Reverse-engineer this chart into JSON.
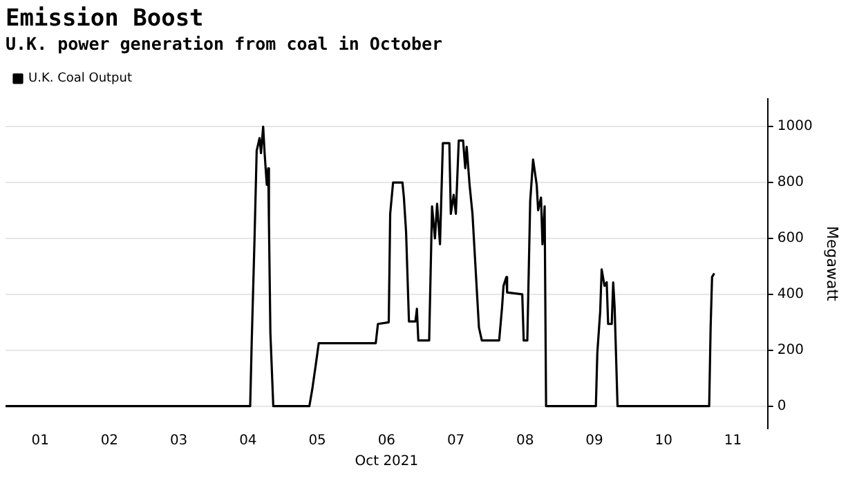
{
  "chart_data": {
    "type": "line",
    "title": "Emission Boost",
    "subtitle": "U.K. power generation from coal in October",
    "xlabel": "Oct 2021",
    "ylabel": "Megawatt",
    "series": [
      {
        "name": "U.K. Coal Output",
        "color": "#000000",
        "x": [
          "2021-10-01T00:00",
          "2021-10-04T12:45",
          "2021-10-04T13:15",
          "2021-10-04T14:15",
          "2021-10-04T15:00",
          "2021-10-04T16:00",
          "2021-10-04T16:30",
          "2021-10-04T17:15",
          "2021-10-04T17:45",
          "2021-10-04T18:30",
          "2021-10-04T19:00",
          "2021-10-04T19:15",
          "2021-10-04T19:45",
          "2021-10-04T20:45",
          "2021-10-05T09:15",
          "2021-10-05T10:15",
          "2021-10-05T11:30",
          "2021-10-05T12:30",
          "2021-10-06T08:15",
          "2021-10-06T09:00",
          "2021-10-06T12:45",
          "2021-10-06T13:15",
          "2021-10-06T14:15",
          "2021-10-06T17:30",
          "2021-10-06T18:00",
          "2021-10-06T18:45",
          "2021-10-06T19:45",
          "2021-10-06T22:00",
          "2021-10-06T22:30",
          "2021-10-06T23:00",
          "2021-10-07T02:45",
          "2021-10-07T03:45",
          "2021-10-07T04:45",
          "2021-10-07T05:30",
          "2021-10-07T06:30",
          "2021-10-07T07:30",
          "2021-10-07T09:45",
          "2021-10-07T10:15",
          "2021-10-07T11:15",
          "2021-10-07T12:00",
          "2021-10-07T13:00",
          "2021-10-07T14:30",
          "2021-10-07T15:15",
          "2021-10-07T15:45",
          "2021-10-07T16:45",
          "2021-10-07T17:45",
          "2021-10-07T20:00",
          "2021-10-07T21:00",
          "2021-10-08T03:00",
          "2021-10-08T04:00",
          "2021-10-08T04:30",
          "2021-10-08T05:30",
          "2021-10-08T05:45",
          "2021-10-08T11:00",
          "2021-10-08T11:30",
          "2021-10-08T12:45",
          "2021-10-08T13:45",
          "2021-10-08T14:45",
          "2021-10-08T16:00",
          "2021-10-08T16:30",
          "2021-10-08T17:30",
          "2021-10-08T18:00",
          "2021-10-08T18:45",
          "2021-10-08T19:15",
          "2021-10-09T12:30",
          "2021-10-09T13:00",
          "2021-10-09T14:00",
          "2021-10-09T14:30",
          "2021-10-09T15:30",
          "2021-10-09T16:15",
          "2021-10-09T16:45",
          "2021-10-09T18:00",
          "2021-10-09T18:30",
          "2021-10-09T19:00",
          "2021-10-09T20:00",
          "2021-10-11T03:45",
          "2021-10-11T04:15",
          "2021-10-11T04:45",
          "2021-10-11T05:30"
        ],
        "values": [
          0,
          0,
          217,
          597,
          914,
          959,
          905,
          1000,
          905,
          792,
          851,
          656,
          262,
          0,
          0,
          60,
          150,
          225,
          225,
          294,
          300,
          688,
          800,
          800,
          746,
          624,
          303,
          303,
          348,
          235,
          235,
          715,
          600,
          724,
          579,
          941,
          941,
          688,
          756,
          688,
          950,
          950,
          851,
          928,
          792,
          688,
          281,
          235,
          235,
          353,
          430,
          462,
          407,
          400,
          235,
          235,
          733,
          882,
          792,
          701,
          746,
          579,
          715,
          0,
          0,
          190,
          339,
          489,
          430,
          443,
          294,
          294,
          443,
          353,
          0,
          0,
          281,
          462,
          475
        ]
      }
    ],
    "xlim": [
      "2021-10-01T00:00",
      "2021-10-12T00:00"
    ],
    "xticks": [
      {
        "value": "2021-10-01T12:00",
        "label": "01"
      },
      {
        "value": "2021-10-02T12:00",
        "label": "02"
      },
      {
        "value": "2021-10-03T12:00",
        "label": "03"
      },
      {
        "value": "2021-10-04T12:00",
        "label": "04"
      },
      {
        "value": "2021-10-05T12:00",
        "label": "05"
      },
      {
        "value": "2021-10-06T12:00",
        "label": "06"
      },
      {
        "value": "2021-10-07T12:00",
        "label": "07"
      },
      {
        "value": "2021-10-08T12:00",
        "label": "08"
      },
      {
        "value": "2021-10-09T12:00",
        "label": "09"
      },
      {
        "value": "2021-10-10T12:00",
        "label": "10"
      },
      {
        "value": "2021-10-11T12:00",
        "label": "11"
      }
    ],
    "ylim": [
      -80,
      1100
    ],
    "yticks": [
      0,
      200,
      400,
      600,
      800,
      1000
    ],
    "grid": "y",
    "legend": "top left",
    "marker": "none",
    "line_style": "solid"
  }
}
